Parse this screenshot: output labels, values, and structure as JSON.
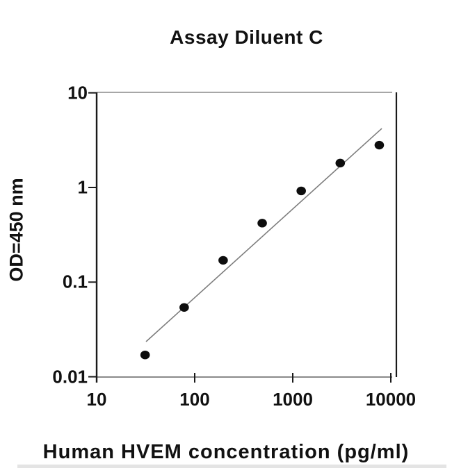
{
  "chart_data": {
    "type": "scatter",
    "title": "Assay Diluent C",
    "xlabel": "Human HVEM concentration (pg/ml)",
    "ylabel": "OD=450 nm",
    "x_scale": "log",
    "y_scale": "log",
    "xlim": [
      10,
      10000
    ],
    "ylim": [
      0.01,
      10
    ],
    "x_tick_values": [
      10,
      100,
      1000,
      10000
    ],
    "x_tick_labels": [
      "10",
      "100",
      "1000",
      "10000"
    ],
    "y_tick_values": [
      10,
      1,
      0.1,
      0.01
    ],
    "y_tick_labels": [
      "10",
      "1",
      "0.1",
      "0.01"
    ],
    "grid": false,
    "legend": "none",
    "points": [
      {
        "x": 31.2,
        "y": 0.017
      },
      {
        "x": 78.1,
        "y": 0.054
      },
      {
        "x": 195,
        "y": 0.17
      },
      {
        "x": 488,
        "y": 0.42
      },
      {
        "x": 1220,
        "y": 0.92
      },
      {
        "x": 3050,
        "y": 1.81
      },
      {
        "x": 7630,
        "y": 2.8
      }
    ],
    "trendline": {
      "x1": 31.9,
      "y1": 0.0235,
      "x2": 8090,
      "y2": 4.2
    },
    "colors": {
      "point": "#0d0d0d",
      "trendline": "#7d7d7d",
      "axis_dark": "#1a1a1a",
      "frame_gray": "#8a8a8a",
      "text": "#111111"
    }
  }
}
